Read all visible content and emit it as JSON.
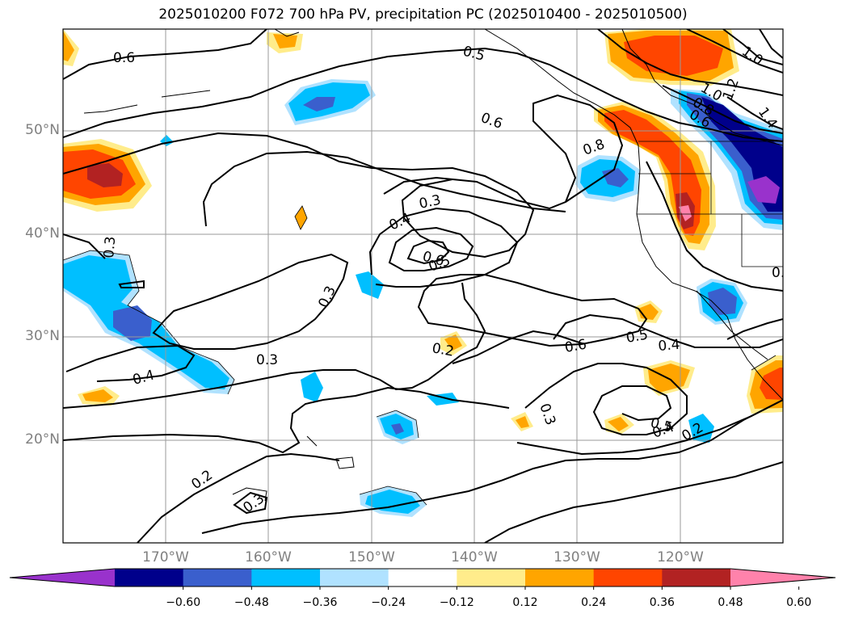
{
  "title": "2025010200 F072 700 hPa PV, precipitation PC (2025010400 - 2025010500)",
  "latitude_labels": [
    "50°N",
    "40°N",
    "30°N",
    "20°N"
  ],
  "longitude_labels": [
    "170°W",
    "160°W",
    "150°W",
    "140°W",
    "130°W",
    "120°W"
  ],
  "contour_labels": [
    "0.6",
    "0.5",
    "1.0",
    "1.2",
    "1.0",
    "0.8",
    "0.6",
    "1.4",
    "0.6",
    "0.8",
    "0.3",
    "0.4",
    "0.6",
    "0.5",
    "0.3",
    "0.3",
    "0.3",
    "0.4",
    "0.2",
    "0.6",
    "0.5",
    "0.4",
    "0.3",
    "0.5",
    "0.4",
    "0.2",
    "0.2",
    "0.3",
    "0.6"
  ],
  "colorbar": {
    "tick_labels": [
      "−0.60",
      "−0.48",
      "−0.36",
      "−0.24",
      "−0.12",
      "0.12",
      "0.24",
      "0.36",
      "0.48",
      "0.60"
    ],
    "colors": [
      "#9932cc",
      "#00008b",
      "#3a5fcd",
      "#00bfff",
      "#b0e2ff",
      "#ffffff",
      "#ffec8b",
      "#ffa500",
      "#ff4500",
      "#b22222",
      "#ff82ab"
    ]
  }
}
